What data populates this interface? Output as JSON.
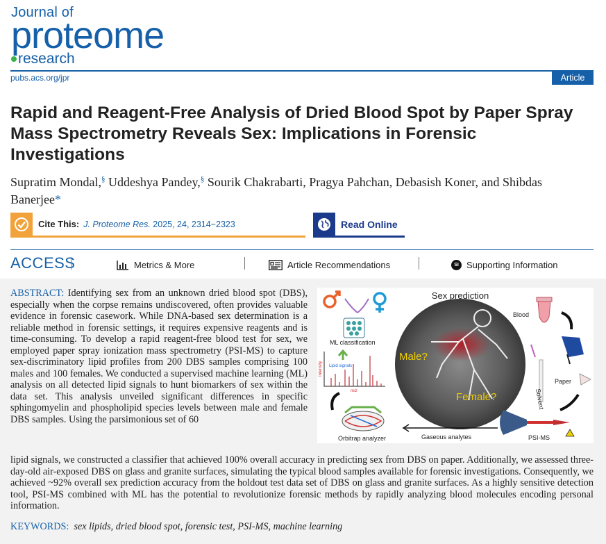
{
  "journal": {
    "line1": "Journal of",
    "line2": "proteome",
    "line3": "research",
    "url": "pubs.acs.org/jpr",
    "badge": "Article"
  },
  "title": "Rapid and Reagent-Free Analysis of Dried Blood Spot by Paper Spray Mass Spectrometry Reveals Sex: Implications in Forensic Investigations",
  "authors": {
    "a1": "Supratim Mondal,",
    "a1_sup": "§",
    "a2": " Uddeshya Pandey,",
    "a2_sup": "§",
    "rest": " Sourik Chakrabarti, Pragya Pahchan, Debasish Koner, and Shibdas Banerjee",
    "star": "*"
  },
  "cite": {
    "label": "Cite This:",
    "journal": "J. Proteome Res.",
    "ref": " 2025, 24, 2314−2323"
  },
  "read_online": "Read Online",
  "access": {
    "label": "ACCESS",
    "metrics": "Metrics & More",
    "recommendations": "Article Recommendations",
    "supporting": "Supporting Information",
    "si_badge": "SI"
  },
  "abstract": {
    "heading": "ABSTRACT:",
    "left_text": " Identifying sex from an unknown dried blood spot (DBS), especially when the corpse remains undiscovered, often provides valuable evidence in forensic casework. While DNA-based sex determination is a reliable method in forensic settings, it requires expensive reagents and is time-consuming. To develop a rapid reagent-free blood test for sex, we employed paper spray ionization mass spectrometry (PSI-MS) to capture sex-discriminatory lipid profiles from 200 DBS samples comprising 100 males and 100 females. We conducted a supervised machine learning (ML) analysis on all detected lipid signals to hunt biomarkers of sex within the data set. This analysis unveiled significant differences in specific sphingomyelin and phospholipid species levels between male and female DBS samples. Using the parsimonious set of 60",
    "full_text": "lipid signals, we constructed a classifier that achieved 100% overall accuracy in predicting sex from DBS on paper. Additionally, we assessed three-day-old air-exposed DBS on glass and granite surfaces, simulating the typical blood samples available for forensic investigations. Consequently, we achieved ~92% overall sex prediction accuracy from the holdout test data set of DBS on glass and granite surfaces. As a highly sensitive detection tool, PSI-MS combined with ML has the potential to revolutionize forensic methods by rapidly analyzing blood molecules encoding personal information."
  },
  "keywords": {
    "heading": "KEYWORDS:",
    "list": "sex lipids, dried blood spot, forensic test, PSI-MS, machine learning"
  },
  "toc": {
    "sex_prediction": "Sex prediction",
    "ml_classification": "ML classification",
    "lipid_signals": "Lipid signals",
    "intensity": "Intensity",
    "mz": "m/z",
    "male": "Male?",
    "female": "Female?",
    "blood": "Blood",
    "paper": "Paper",
    "solvent": "Solvent",
    "psi_ms": "PSI-MS",
    "gaseous": "Gaseous analytes",
    "orbitrap": "Orbitrap analyzer",
    "male_color": "#e8612c",
    "female_color": "#1e9ad6"
  }
}
